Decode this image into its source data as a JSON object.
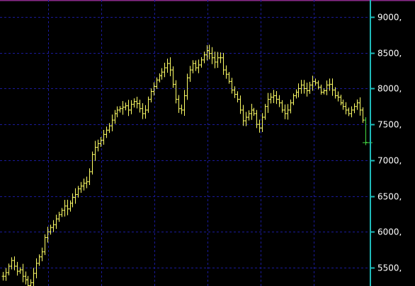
{
  "colors": {
    "background": "#000000",
    "grid": "#1a1a9a",
    "axis": "#1fb9b9",
    "bars": "#ffff66",
    "last_bar": "#44dd44",
    "top_border": "#8a2a8a"
  },
  "chart_data": {
    "type": "bar",
    "style": "ohlc-price-bars",
    "title": "",
    "xlabel": "",
    "ylabel": "",
    "ylim": [
      5200,
      9200
    ],
    "grid": true,
    "y_axis_side": "right",
    "y_ticks": [
      {
        "value": 9000,
        "label": "9000,"
      },
      {
        "value": 8500,
        "label": "8500,"
      },
      {
        "value": 8000,
        "label": "8000,"
      },
      {
        "value": 7500,
        "label": "7500,"
      },
      {
        "value": 7000,
        "label": "7000,"
      },
      {
        "value": 6500,
        "label": "6500,"
      },
      {
        "value": 6000,
        "label": "6000,"
      },
      {
        "value": 5500,
        "label": "5500,"
      }
    ],
    "series": [
      {
        "values": [
          5380,
          5430,
          5520,
          5600,
          5520,
          5450,
          5470,
          5380,
          5330,
          5250,
          5290,
          5420,
          5560,
          5650,
          5720,
          5920,
          6000,
          6060,
          6100,
          6180,
          6240,
          6300,
          6360,
          6320,
          6400,
          6480,
          6520,
          6600,
          6640,
          6680,
          6700,
          6840,
          7080,
          7180,
          7230,
          7280,
          7360,
          7420,
          7480,
          7560,
          7650,
          7700,
          7720,
          7740,
          7760,
          7700,
          7780,
          7820,
          7790,
          7720,
          7650,
          7700,
          7850,
          7960,
          8030,
          8120,
          8180,
          8230,
          8290,
          8350,
          8260,
          8060,
          7850,
          7720,
          7700,
          7900,
          8150,
          8260,
          8350,
          8290,
          8330,
          8400,
          8470,
          8530,
          8490,
          8430,
          8370,
          8430,
          8430,
          8260,
          8200,
          8100,
          7980,
          7920,
          7850,
          7700,
          7550,
          7600,
          7650,
          7700,
          7650,
          7500,
          7450,
          7600,
          7750,
          7850,
          7880,
          7900,
          7850,
          7800,
          7700,
          7650,
          7700,
          7800,
          7900,
          7950,
          8000,
          8050,
          8000,
          7970,
          8050,
          8100,
          8080,
          8020,
          7950,
          7970,
          8050,
          8060,
          7980,
          7900,
          7880,
          7800,
          7750,
          7700,
          7650,
          7700,
          7750,
          7800,
          7700,
          7560,
          7250
        ]
      }
    ]
  }
}
